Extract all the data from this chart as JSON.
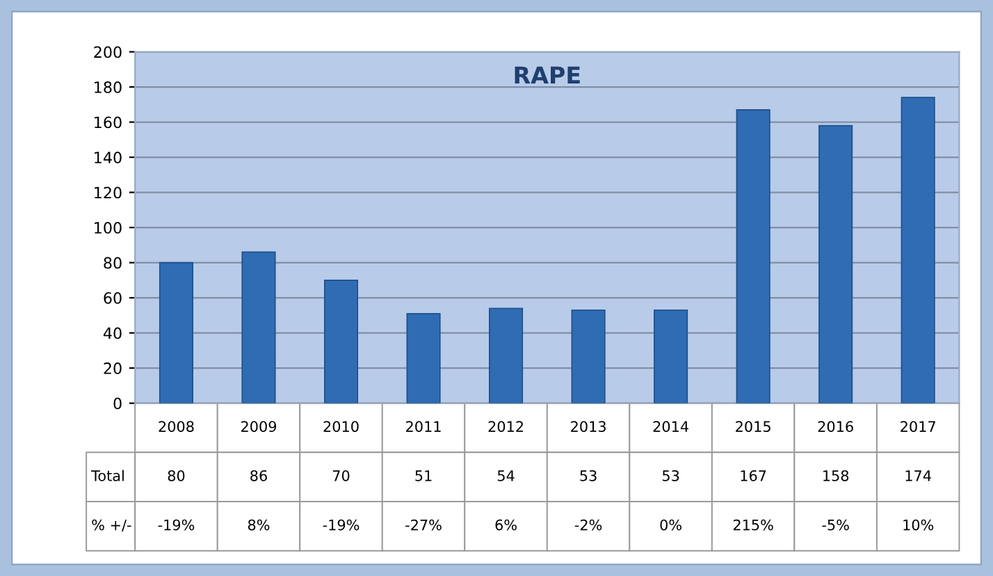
{
  "chart_data": {
    "type": "bar",
    "title": "RAPE",
    "categories": [
      "2008",
      "2009",
      "2010",
      "2011",
      "2012",
      "2013",
      "2014",
      "2015",
      "2016",
      "2017"
    ],
    "series": [
      {
        "name": "Total",
        "color": "#2f6cb3",
        "values": [
          80,
          86,
          70,
          51,
          54,
          53,
          53,
          167,
          158,
          174
        ]
      }
    ],
    "annotations": [
      "% +/-",
      "-19%",
      "8%",
      "-19%",
      "-27%",
      "6%",
      "-2%",
      "0%",
      "215%",
      "-5%",
      "10%"
    ],
    "ylim": [
      0,
      200
    ],
    "yticks": [
      0,
      20,
      40,
      60,
      80,
      100,
      120,
      140,
      160,
      180,
      200
    ],
    "grid": "y",
    "data_labels": true,
    "legend": false
  }
}
